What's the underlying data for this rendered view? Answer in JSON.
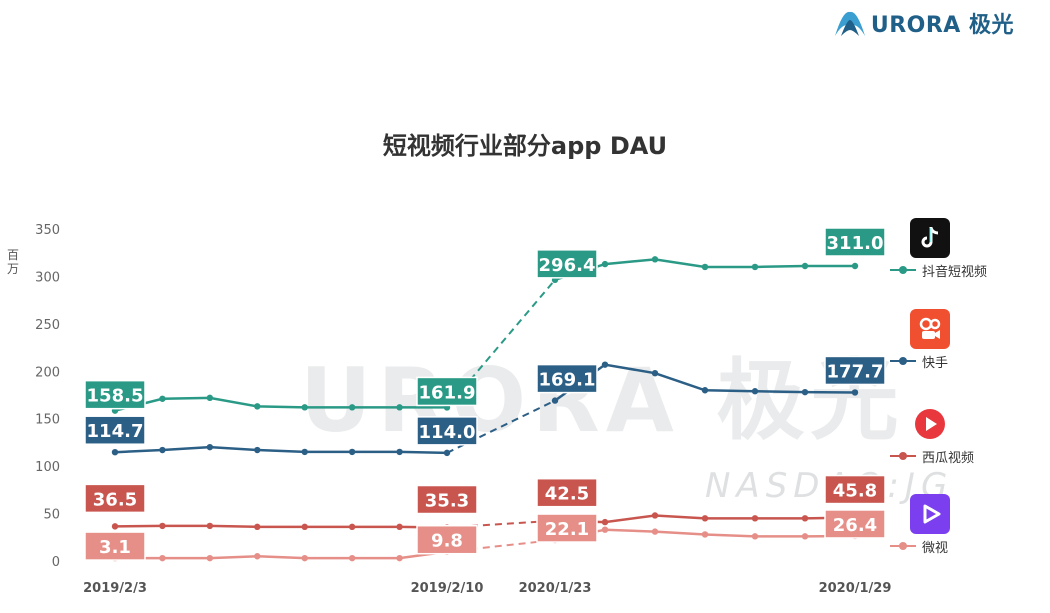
{
  "brand": {
    "logo_text": "URORA 极光"
  },
  "watermark": {
    "main": "URORA 极光",
    "sub": "NASDAQ:JG"
  },
  "chart_data": {
    "type": "line",
    "title": "短视频行业部分app DAU",
    "ylabel": "百万",
    "xlabel": "",
    "ylim": [
      0,
      350
    ],
    "yticks": [
      0,
      50,
      100,
      150,
      200,
      250,
      300,
      350
    ],
    "grid": false,
    "legend_position": "right",
    "x_tick_labels": [
      "2019/2/3",
      "2019/2/10",
      "2020/1/23",
      "2020/1/29"
    ],
    "periods": [
      {
        "start": "2019/2/3",
        "end": "2019/2/10",
        "points": 8
      },
      {
        "start": "2020/1/23",
        "end": "2020/1/29",
        "points": 7
      }
    ],
    "series": [
      {
        "name": "抖音短视频",
        "color": "#2a9a86",
        "icon": "douyin-icon",
        "period1": [
          158.5,
          171,
          172,
          163,
          162,
          162,
          162,
          161.9
        ],
        "period2": [
          296.4,
          313,
          318,
          310,
          310,
          311,
          311.0
        ],
        "labels": [
          "158.5",
          "161.9",
          "296.4",
          "311.0"
        ]
      },
      {
        "name": "快手",
        "color": "#2c5f86",
        "icon": "kuaishou-icon",
        "period1": [
          114.7,
          117,
          120,
          117,
          115,
          115,
          115,
          114.0
        ],
        "period2": [
          169.1,
          207,
          198,
          180,
          179,
          178,
          177.7
        ],
        "labels": [
          "114.7",
          "114.0",
          "169.1",
          "177.7"
        ]
      },
      {
        "name": "西瓜视频",
        "color": "#c8564f",
        "icon": "xigua-icon",
        "period1": [
          36.5,
          37,
          37,
          36,
          36,
          36,
          36,
          35.3
        ],
        "period2": [
          42.5,
          41,
          48,
          45,
          45,
          45,
          45.8
        ],
        "labels": [
          "36.5",
          "35.3",
          "42.5",
          "45.8"
        ]
      },
      {
        "name": "微视",
        "color": "#e58f88",
        "icon": "weishi-icon",
        "period1": [
          3.1,
          3,
          3,
          5,
          3,
          3,
          3,
          9.8
        ],
        "period2": [
          22.1,
          33,
          31,
          28,
          26,
          26,
          26.4
        ],
        "labels": [
          "3.1",
          "9.8",
          "22.1",
          "26.4"
        ]
      }
    ]
  }
}
